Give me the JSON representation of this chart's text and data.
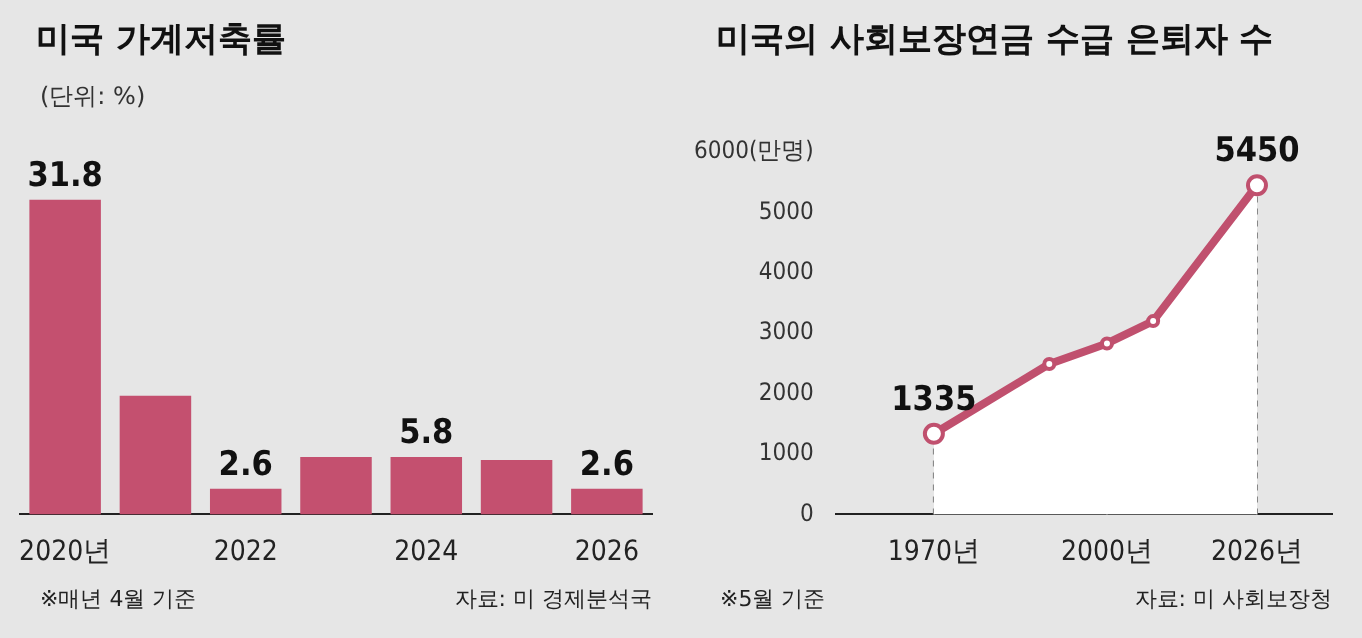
{
  "chart_data": [
    {
      "type": "bar",
      "title": "미국 가계저축률",
      "subtitle": "(단위: %)",
      "categories": [
        "2020년",
        null,
        "2022",
        null,
        "2024",
        null,
        "2026"
      ],
      "values": [
        31.8,
        12,
        2.6,
        5.8,
        5.8,
        5.5,
        2.6
      ],
      "value_labels": [
        "31.8",
        null,
        "2.6",
        null,
        "5.8",
        null,
        "2.6"
      ],
      "color": "#c4506f",
      "annotations": [
        "※매년 4월 기준",
        "자료: 미 경제분석국"
      ]
    },
    {
      "type": "area",
      "title": "미국의 사회보장연금 수급 은퇴자 수",
      "x": [
        1970,
        1990,
        2000,
        2008,
        2026
      ],
      "values": [
        1335,
        2490,
        2830,
        3200,
        5450
      ],
      "value_labels": [
        "1335",
        null,
        null,
        null,
        "5450"
      ],
      "color": "#c0506e",
      "marker": "circle",
      "xlim": [
        1953,
        2039
      ],
      "ylim": [
        0,
        6000
      ],
      "xticks": [
        {
          "value": 1970,
          "label": "1970년"
        },
        {
          "value": 2000,
          "label": "2000년"
        },
        {
          "value": 2026,
          "label": "2026년"
        }
      ],
      "yticks": [
        0,
        1000,
        2000,
        3000,
        4000,
        5000,
        {
          "value": 6000,
          "label": "6000(만명)"
        }
      ],
      "ref_lines": [
        {
          "axis": "x",
          "value": 1970,
          "line_style": "dashed"
        },
        {
          "axis": "x",
          "value": 2000,
          "line_style": "dashed"
        },
        {
          "axis": "x",
          "value": 2026,
          "line_style": "dashed"
        }
      ],
      "annotations": [
        "※5월 기준",
        "자료: 미 사회보장청"
      ]
    }
  ]
}
